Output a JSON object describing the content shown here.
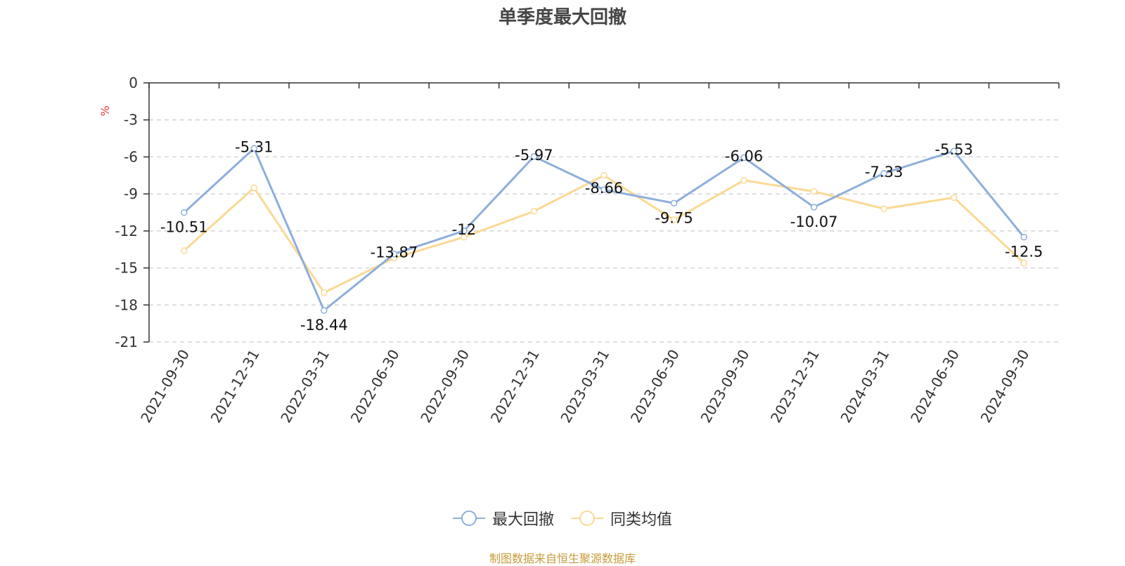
{
  "chart_data": {
    "type": "line",
    "title": "单季度最大回撤",
    "ylabel": "%",
    "ylim": [
      -21,
      0
    ],
    "yticks": [
      0,
      -3,
      -6,
      -9,
      -12,
      -15,
      -18,
      -21
    ],
    "categories": [
      "2021-09-30",
      "2021-12-31",
      "2022-03-31",
      "2022-06-30",
      "2022-09-30",
      "2022-12-31",
      "2023-03-31",
      "2023-06-30",
      "2023-09-30",
      "2023-12-31",
      "2024-03-31",
      "2024-06-30",
      "2024-09-30"
    ],
    "series": [
      {
        "name": "最大回撤",
        "color": "#8eaedb",
        "values": [
          -10.51,
          -5.31,
          -18.44,
          -13.87,
          -12,
          -5.97,
          -8.66,
          -9.75,
          -6.06,
          -10.07,
          -7.33,
          -5.53,
          -12.5
        ],
        "show_labels": true
      },
      {
        "name": "同类均值",
        "color": "#fbd993",
        "values": [
          -13.6,
          -8.5,
          -17,
          -14.2,
          -12.5,
          -10.4,
          -7.5,
          -11.1,
          -7.9,
          -8.8,
          -10.2,
          -9.3,
          -14.6
        ],
        "show_labels": false
      }
    ],
    "grid": true,
    "legend_position": "bottom"
  },
  "source_note": "制图数据来自恒生聚源数据库"
}
